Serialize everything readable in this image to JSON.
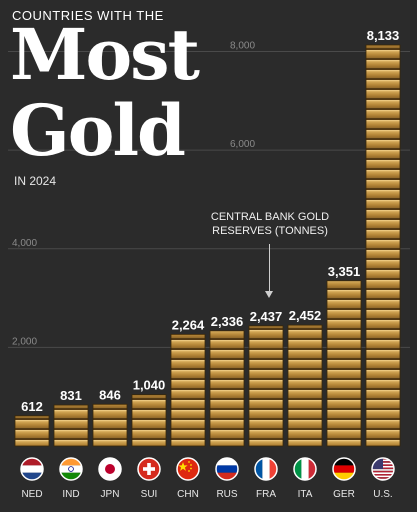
{
  "header": {
    "kicker": "COUNTRIES WITH THE",
    "title_line1": "Most",
    "title_line2": "Gold",
    "year": "IN 2024"
  },
  "annotation": {
    "line1": "CENTRAL BANK GOLD",
    "line2": "RESERVES (TONNES)"
  },
  "chart_data": {
    "type": "bar",
    "categories": [
      "NED",
      "IND",
      "JPN",
      "SUI",
      "CHN",
      "RUS",
      "FRA",
      "ITA",
      "GER",
      "U.S."
    ],
    "values": [
      612,
      831,
      846,
      1040,
      2264,
      2336,
      2437,
      2452,
      3351,
      8133
    ],
    "value_labels": [
      "612",
      "831",
      "846",
      "1,040",
      "2,264",
      "2,336",
      "2,437",
      "2,452",
      "3,351",
      "8,133"
    ],
    "yticks": [
      2000,
      4000,
      6000,
      8000
    ],
    "ytick_labels": [
      "2,000",
      "4,000",
      "6,000",
      "8,000"
    ],
    "ylim": [
      0,
      8133
    ],
    "grid": true,
    "bar_color": "#b8893a",
    "flags": [
      {
        "code": "NED",
        "icon": "netherlands-flag-icon"
      },
      {
        "code": "IND",
        "icon": "india-flag-icon"
      },
      {
        "code": "JPN",
        "icon": "japan-flag-icon"
      },
      {
        "code": "SUI",
        "icon": "switzerland-flag-icon"
      },
      {
        "code": "CHN",
        "icon": "china-flag-icon"
      },
      {
        "code": "RUS",
        "icon": "russia-flag-icon"
      },
      {
        "code": "FRA",
        "icon": "france-flag-icon"
      },
      {
        "code": "ITA",
        "icon": "italy-flag-icon"
      },
      {
        "code": "GER",
        "icon": "germany-flag-icon"
      },
      {
        "code": "U.S.",
        "icon": "usa-flag-icon"
      }
    ]
  }
}
